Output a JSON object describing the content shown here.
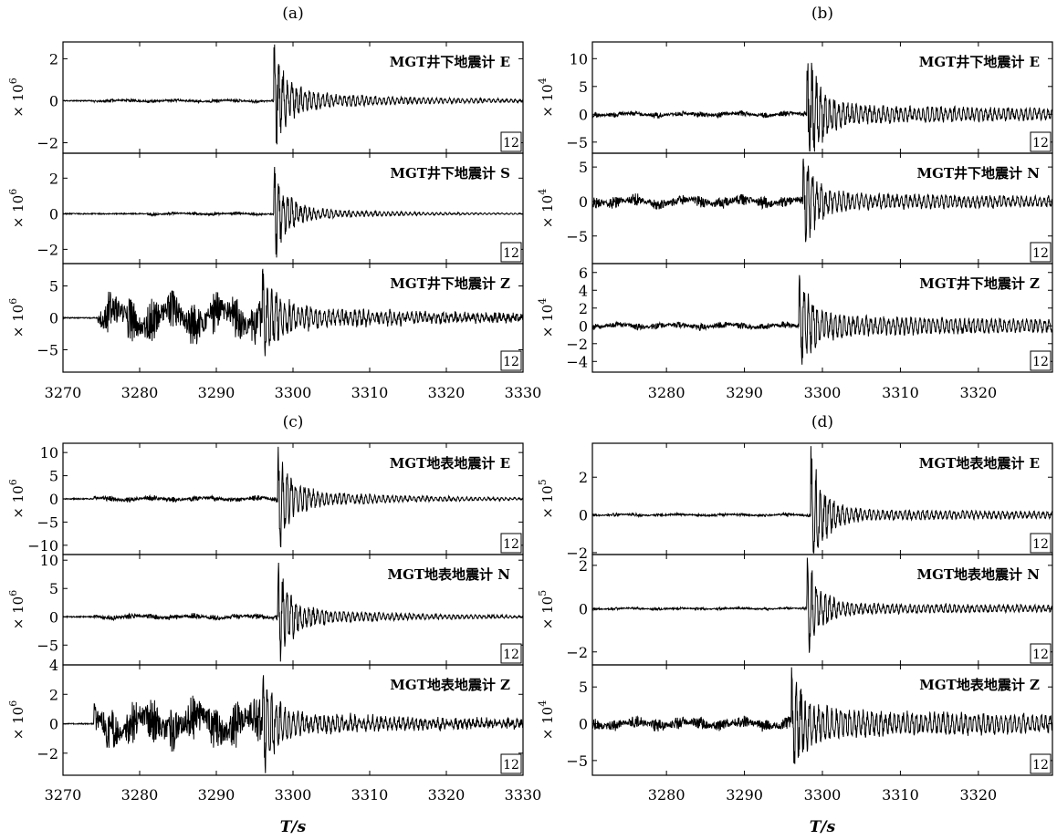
{
  "chart_data": [
    {
      "type": "line",
      "panel_label": "(a)",
      "x_ticks": [
        "3270",
        "3280",
        "3290",
        "3300",
        "3310",
        "3320",
        "3330"
      ],
      "xlim": [
        3270,
        3330
      ],
      "x_tick_values": [
        3270,
        3280,
        3290,
        3300,
        3310,
        3320,
        3330
      ],
      "xlabel": "",
      "subplots": [
        {
          "title": "MGT井下地震计 E",
          "ylabel": "× 10^6",
          "ylabel_base": "× 10",
          "ylabel_exp": "6",
          "ylim": [
            -2.5,
            2.8
          ],
          "yticks": [
            2,
            0,
            -2
          ],
          "ytick_labels": [
            "2",
            "0",
            "−2"
          ],
          "box": "12",
          "signal": {
            "onset": 3274,
            "pre_noise": 0.08,
            "arrival": 3297.5,
            "arrival_amp": 2.5,
            "coda_level": 0.5,
            "decay": 18,
            "seed": 11
          }
        },
        {
          "title": "MGT井下地震计 S",
          "ylabel": "× 10^6",
          "ylabel_base": "× 10",
          "ylabel_exp": "6",
          "ylim": [
            -2.8,
            3.4
          ],
          "yticks": [
            2,
            0,
            -2
          ],
          "ytick_labels": [
            "2",
            "0",
            "−2"
          ],
          "box": "12",
          "signal": {
            "onset": 3281,
            "pre_noise": 0.08,
            "arrival": 3297.5,
            "arrival_amp": 2.7,
            "coda_level": 0.4,
            "decay": 14,
            "seed": 23
          }
        },
        {
          "title": "MGT井下地震计 Z",
          "ylabel": "× 10^6",
          "ylabel_base": "× 10",
          "ylabel_exp": "6",
          "ylim": [
            -8.5,
            8.5
          ],
          "yticks": [
            5,
            0,
            -5
          ],
          "ytick_labels": [
            "5",
            "0",
            "−5"
          ],
          "box": "12",
          "signal": {
            "onset": 3274.5,
            "pre_noise": 3.5,
            "arrival": 3296,
            "arrival_amp": 7.5,
            "coda_level": 2.0,
            "decay": 25,
            "seed": 37
          }
        }
      ]
    },
    {
      "type": "line",
      "panel_label": "(b)",
      "x_ticks": [
        "3280",
        "3290",
        "3300",
        "3310",
        "3320"
      ],
      "xlim": [
        3270.5,
        3329.5
      ],
      "x_tick_values": [
        3280,
        3290,
        3300,
        3310,
        3320
      ],
      "xlabel": "",
      "subplots": [
        {
          "title": "MGT井下地震计 E",
          "ylabel": "× 10^4",
          "ylabel_base": "× 10",
          "ylabel_exp": "4",
          "ylim": [
            -7,
            13
          ],
          "yticks": [
            10,
            5,
            0,
            -5
          ],
          "ytick_labels": [
            "10",
            "5",
            "0",
            "−5"
          ],
          "box": "12",
          "signal": {
            "onset": 3270,
            "pre_noise": 0.5,
            "arrival": 3298,
            "arrival_amp": 12,
            "coda_level": 2.0,
            "decay": 60,
            "seed": 51
          }
        },
        {
          "title": "MGT井下地震计 N",
          "ylabel": "× 10^4",
          "ylabel_base": "× 10",
          "ylabel_exp": "4",
          "ylim": [
            -9,
            7
          ],
          "yticks": [
            5,
            0,
            -5
          ],
          "ytick_labels": [
            "5",
            "0",
            "−5"
          ],
          "box": "12",
          "signal": {
            "onset": 3270,
            "pre_noise": 0.9,
            "arrival": 3297.5,
            "arrival_amp": 7.5,
            "coda_level": 1.4,
            "decay": 60,
            "seed": 63
          }
        },
        {
          "title": "MGT井下地震计 Z",
          "ylabel": "× 10^4",
          "ylabel_base": "× 10",
          "ylabel_exp": "4",
          "ylim": [
            -5.2,
            7
          ],
          "yticks": [
            6,
            4,
            2,
            0,
            -2,
            -4
          ],
          "ytick_labels": [
            "6",
            "4",
            "2",
            "0",
            "−2",
            "−4"
          ],
          "box": "12",
          "signal": {
            "onset": 3270,
            "pre_noise": 0.4,
            "arrival": 3297,
            "arrival_amp": 5.5,
            "coda_level": 1.4,
            "decay": 60,
            "seed": 71
          }
        }
      ]
    },
    {
      "type": "line",
      "panel_label": "(c)",
      "x_ticks": [
        "3270",
        "3280",
        "3290",
        "3300",
        "3310",
        "3320",
        "3330"
      ],
      "xlim": [
        3270,
        3330
      ],
      "x_tick_values": [
        3270,
        3280,
        3290,
        3300,
        3310,
        3320,
        3330
      ],
      "xlabel": "T/s",
      "subplots": [
        {
          "title": "MGT地表地震计 E",
          "ylabel": "× 10^6",
          "ylabel_base": "× 10",
          "ylabel_exp": "6",
          "ylim": [
            -12,
            12
          ],
          "yticks": [
            10,
            5,
            0,
            -5,
            -10
          ],
          "ytick_labels": [
            "10",
            "5",
            "0",
            "−5",
            "−10"
          ],
          "box": "12",
          "signal": {
            "onset": 3274,
            "pre_noise": 0.6,
            "arrival": 3298,
            "arrival_amp": 11,
            "coda_level": 2.2,
            "decay": 16,
            "seed": 83
          }
        },
        {
          "title": "MGT地表地震计 N",
          "ylabel": "× 10^6",
          "ylabel_base": "× 10",
          "ylabel_exp": "6",
          "ylim": [
            -8.5,
            11
          ],
          "yticks": [
            10,
            5,
            0,
            -5
          ],
          "ytick_labels": [
            "10",
            "5",
            "0",
            "−5"
          ],
          "box": "12",
          "signal": {
            "onset": 3274,
            "pre_noise": 0.5,
            "arrival": 3298,
            "arrival_amp": 9,
            "coda_level": 1.8,
            "decay": 16,
            "seed": 97
          }
        },
        {
          "title": "MGT地表地震计 Z",
          "ylabel": "× 10^6",
          "ylabel_base": "× 10",
          "ylabel_exp": "6",
          "ylim": [
            -3.5,
            4
          ],
          "yticks": [
            4,
            2,
            0,
            -2
          ],
          "ytick_labels": [
            "4",
            "2",
            "0",
            "−2"
          ],
          "box": "12",
          "signal": {
            "onset": 3274,
            "pre_noise": 1.6,
            "arrival": 3296,
            "arrival_amp": 3.5,
            "coda_level": 0.9,
            "decay": 25,
            "seed": 109
          }
        }
      ]
    },
    {
      "type": "line",
      "panel_label": "(d)",
      "x_ticks": [
        "3280",
        "3290",
        "3300",
        "3310",
        "3320"
      ],
      "xlim": [
        3270.5,
        3329.5
      ],
      "x_tick_values": [
        3280,
        3290,
        3300,
        3310,
        3320
      ],
      "xlabel": "T/s",
      "subplots": [
        {
          "title": "MGT地表地震计 E",
          "ylabel": "× 10^5",
          "ylabel_base": "× 10",
          "ylabel_exp": "5",
          "ylim": [
            -2.1,
            3.8
          ],
          "yticks": [
            2,
            0,
            -2
          ],
          "ytick_labels": [
            "2",
            "0",
            "−2"
          ],
          "box": "12",
          "signal": {
            "onset": 3270,
            "pre_noise": 0.08,
            "arrival": 3298.5,
            "arrival_amp": 3.6,
            "coda_level": 0.35,
            "decay": 60,
            "seed": 127
          }
        },
        {
          "title": "MGT地表地震计 N",
          "ylabel": "× 10^5",
          "ylabel_base": "× 10",
          "ylabel_exp": "5",
          "ylim": [
            -2.6,
            2.5
          ],
          "yticks": [
            2,
            0,
            -2
          ],
          "ytick_labels": [
            "2",
            "0",
            "−2"
          ],
          "box": "12",
          "signal": {
            "onset": 3270,
            "pre_noise": 0.06,
            "arrival": 3298,
            "arrival_amp": 2.4,
            "coda_level": 0.3,
            "decay": 60,
            "seed": 139
          }
        },
        {
          "title": "MGT地表地震计 Z",
          "ylabel": "× 10^4",
          "ylabel_base": "× 10",
          "ylabel_exp": "4",
          "ylim": [
            -7,
            8
          ],
          "yticks": [
            5,
            0,
            -5
          ],
          "ytick_labels": [
            "5",
            "0",
            "−5"
          ],
          "box": "12",
          "signal": {
            "onset": 3270,
            "pre_noise": 0.9,
            "arrival": 3296,
            "arrival_amp": 7.2,
            "coda_level": 2.3,
            "decay": 60,
            "seed": 151
          }
        }
      ]
    }
  ]
}
